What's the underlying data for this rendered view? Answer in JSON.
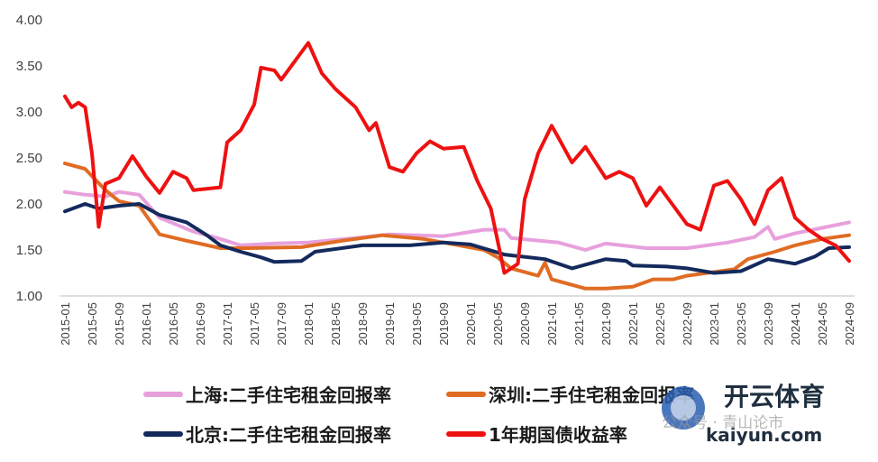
{
  "chart_data": {
    "type": "line",
    "title": "",
    "xlabel": "",
    "ylabel": "",
    "ylim": [
      1.0,
      4.0
    ],
    "yticks": [
      "1.00",
      "1.50",
      "2.00",
      "2.50",
      "3.00",
      "3.50",
      "4.00"
    ],
    "x_start": "2015-01",
    "x_end": "2024-09",
    "xticks": [
      "2015-01",
      "2015-05",
      "2015-09",
      "2016-01",
      "2016-05",
      "2016-09",
      "2017-01",
      "2017-05",
      "2017-09",
      "2018-01",
      "2018-05",
      "2018-09",
      "2019-01",
      "2019-05",
      "2019-09",
      "2020-01",
      "2020-05",
      "2020-09",
      "2021-01",
      "2021-05",
      "2021-09",
      "2022-01",
      "2022-05",
      "2022-09",
      "2023-01",
      "2023-05",
      "2023-09",
      "2024-01",
      "2024-05",
      "2024-09"
    ],
    "grid": false,
    "legend_position": "bottom",
    "series": [
      {
        "name": "上海:二手住宅租金回报率",
        "color": "#e8a0dc",
        "knots": [
          [
            "2015-01",
            2.13
          ],
          [
            "2015-04",
            2.1
          ],
          [
            "2015-07",
            2.08
          ],
          [
            "2015-09",
            2.13
          ],
          [
            "2015-12",
            2.1
          ],
          [
            "2016-03",
            1.85
          ],
          [
            "2016-08",
            1.7
          ],
          [
            "2016-12",
            1.62
          ],
          [
            "2017-03",
            1.55
          ],
          [
            "2017-08",
            1.57
          ],
          [
            "2018-01",
            1.58
          ],
          [
            "2018-08",
            1.63
          ],
          [
            "2019-01",
            1.67
          ],
          [
            "2019-09",
            1.65
          ],
          [
            "2020-03",
            1.72
          ],
          [
            "2020-06",
            1.72
          ],
          [
            "2020-07",
            1.63
          ],
          [
            "2021-02",
            1.58
          ],
          [
            "2021-06",
            1.5
          ],
          [
            "2021-09",
            1.57
          ],
          [
            "2022-03",
            1.52
          ],
          [
            "2022-09",
            1.52
          ],
          [
            "2023-03",
            1.58
          ],
          [
            "2023-07",
            1.64
          ],
          [
            "2023-09",
            1.75
          ],
          [
            "2023-10",
            1.62
          ],
          [
            "2024-01",
            1.68
          ],
          [
            "2024-05",
            1.74
          ],
          [
            "2024-09",
            1.8
          ]
        ]
      },
      {
        "name": "深圳:二手住宅租金回报率",
        "color": "#e06c24",
        "knots": [
          [
            "2015-01",
            2.44
          ],
          [
            "2015-04",
            2.38
          ],
          [
            "2015-07",
            2.15
          ],
          [
            "2015-09",
            2.03
          ],
          [
            "2015-12",
            1.98
          ],
          [
            "2016-03",
            1.67
          ],
          [
            "2016-07",
            1.6
          ],
          [
            "2016-12",
            1.52
          ],
          [
            "2017-04",
            1.52
          ],
          [
            "2017-12",
            1.53
          ],
          [
            "2018-06",
            1.6
          ],
          [
            "2018-12",
            1.66
          ],
          [
            "2019-06",
            1.62
          ],
          [
            "2019-09",
            1.58
          ],
          [
            "2020-03",
            1.5
          ],
          [
            "2020-05",
            1.42
          ],
          [
            "2020-07",
            1.3
          ],
          [
            "2020-11",
            1.22
          ],
          [
            "2020-12",
            1.36
          ],
          [
            "2021-01",
            1.18
          ],
          [
            "2021-06",
            1.08
          ],
          [
            "2021-09",
            1.08
          ],
          [
            "2022-01",
            1.1
          ],
          [
            "2022-04",
            1.18
          ],
          [
            "2022-07",
            1.18
          ],
          [
            "2022-09",
            1.22
          ],
          [
            "2023-01",
            1.26
          ],
          [
            "2023-04",
            1.29
          ],
          [
            "2023-06",
            1.4
          ],
          [
            "2023-10",
            1.48
          ],
          [
            "2024-01",
            1.55
          ],
          [
            "2024-05",
            1.62
          ],
          [
            "2024-09",
            1.66
          ]
        ]
      },
      {
        "name": "北京:二手住宅租金回报率",
        "color": "#142a5c",
        "knots": [
          [
            "2015-01",
            1.92
          ],
          [
            "2015-04",
            2.0
          ],
          [
            "2015-06",
            1.95
          ],
          [
            "2015-09",
            1.98
          ],
          [
            "2015-12",
            2.0
          ],
          [
            "2016-03",
            1.88
          ],
          [
            "2016-07",
            1.8
          ],
          [
            "2016-10",
            1.66
          ],
          [
            "2016-12",
            1.55
          ],
          [
            "2017-03",
            1.48
          ],
          [
            "2017-06",
            1.42
          ],
          [
            "2017-08",
            1.37
          ],
          [
            "2017-12",
            1.38
          ],
          [
            "2018-02",
            1.48
          ],
          [
            "2018-09",
            1.55
          ],
          [
            "2019-04",
            1.55
          ],
          [
            "2019-09",
            1.58
          ],
          [
            "2020-01",
            1.56
          ],
          [
            "2020-06",
            1.45
          ],
          [
            "2020-12",
            1.4
          ],
          [
            "2021-04",
            1.3
          ],
          [
            "2021-09",
            1.4
          ],
          [
            "2021-12",
            1.38
          ],
          [
            "2022-01",
            1.33
          ],
          [
            "2022-06",
            1.32
          ],
          [
            "2022-09",
            1.3
          ],
          [
            "2023-01",
            1.25
          ],
          [
            "2023-05",
            1.27
          ],
          [
            "2023-09",
            1.4
          ],
          [
            "2024-01",
            1.35
          ],
          [
            "2024-04",
            1.43
          ],
          [
            "2024-06",
            1.52
          ],
          [
            "2024-09",
            1.53
          ]
        ]
      },
      {
        "name": "1年期国债收益率",
        "color": "#ee1111",
        "knots": [
          [
            "2015-01",
            3.17
          ],
          [
            "2015-02",
            3.05
          ],
          [
            "2015-03",
            3.1
          ],
          [
            "2015-04",
            3.05
          ],
          [
            "2015-05",
            2.55
          ],
          [
            "2015-06",
            1.75
          ],
          [
            "2015-07",
            2.22
          ],
          [
            "2015-09",
            2.28
          ],
          [
            "2015-11",
            2.52
          ],
          [
            "2016-01",
            2.3
          ],
          [
            "2016-03",
            2.12
          ],
          [
            "2016-05",
            2.35
          ],
          [
            "2016-07",
            2.28
          ],
          [
            "2016-08",
            2.15
          ],
          [
            "2016-12",
            2.18
          ],
          [
            "2017-01",
            2.67
          ],
          [
            "2017-03",
            2.8
          ],
          [
            "2017-05",
            3.08
          ],
          [
            "2017-06",
            3.48
          ],
          [
            "2017-08",
            3.45
          ],
          [
            "2017-09",
            3.35
          ],
          [
            "2017-11",
            3.55
          ],
          [
            "2018-01",
            3.75
          ],
          [
            "2018-03",
            3.42
          ],
          [
            "2018-05",
            3.25
          ],
          [
            "2018-08",
            3.05
          ],
          [
            "2018-10",
            2.8
          ],
          [
            "2018-11",
            2.88
          ],
          [
            "2019-01",
            2.4
          ],
          [
            "2019-03",
            2.35
          ],
          [
            "2019-05",
            2.55
          ],
          [
            "2019-07",
            2.68
          ],
          [
            "2019-09",
            2.6
          ],
          [
            "2019-12",
            2.62
          ],
          [
            "2020-02",
            2.25
          ],
          [
            "2020-04",
            1.95
          ],
          [
            "2020-06",
            1.25
          ],
          [
            "2020-08",
            1.35
          ],
          [
            "2020-09",
            2.05
          ],
          [
            "2020-11",
            2.55
          ],
          [
            "2021-01",
            2.85
          ],
          [
            "2021-02",
            2.72
          ],
          [
            "2021-04",
            2.45
          ],
          [
            "2021-06",
            2.62
          ],
          [
            "2021-09",
            2.28
          ],
          [
            "2021-11",
            2.35
          ],
          [
            "2022-01",
            2.28
          ],
          [
            "2022-03",
            1.98
          ],
          [
            "2022-05",
            2.18
          ],
          [
            "2022-07",
            1.98
          ],
          [
            "2022-09",
            1.78
          ],
          [
            "2022-11",
            1.72
          ],
          [
            "2023-01",
            2.2
          ],
          [
            "2023-03",
            2.25
          ],
          [
            "2023-05",
            2.05
          ],
          [
            "2023-07",
            1.78
          ],
          [
            "2023-09",
            2.15
          ],
          [
            "2023-11",
            2.28
          ],
          [
            "2024-01",
            1.85
          ],
          [
            "2024-03",
            1.72
          ],
          [
            "2024-05",
            1.62
          ],
          [
            "2024-07",
            1.55
          ],
          [
            "2024-09",
            1.38
          ]
        ]
      }
    ]
  },
  "watermark": {
    "brand": "开云体育",
    "site": "kaiyun.com",
    "faint": "公众号 · 青山论市"
  }
}
